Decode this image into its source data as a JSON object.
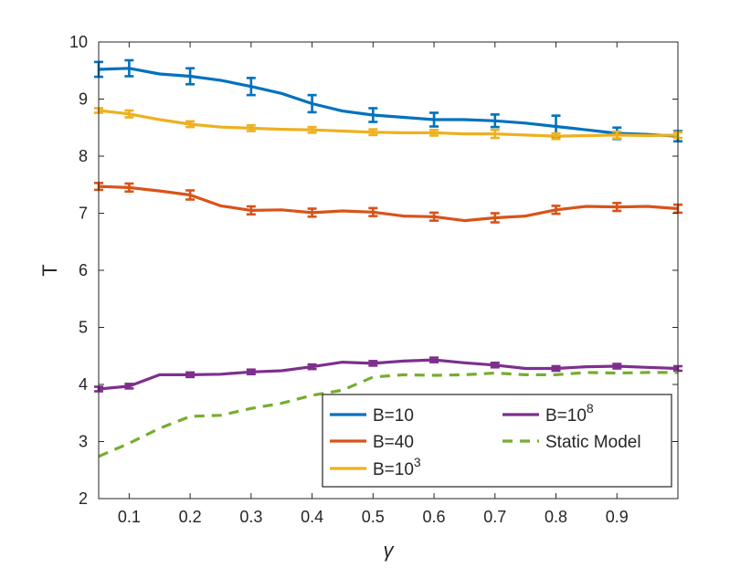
{
  "chart_data": {
    "type": "line",
    "title": "",
    "xlabel": "γ",
    "ylabel": "T",
    "xlim": [
      0.05,
      1.0
    ],
    "ylim": [
      2,
      10
    ],
    "xticks": [
      0.1,
      0.2,
      0.3,
      0.4,
      0.5,
      0.6,
      0.7,
      0.8,
      0.9
    ],
    "xtick_labels": [
      "0.1",
      "0.2",
      "0.3",
      "0.4",
      "0.5",
      "0.6",
      "0.7",
      "0.8",
      "0.9"
    ],
    "yticks": [
      2,
      3,
      4,
      5,
      6,
      7,
      8,
      9,
      10
    ],
    "ytick_labels": [
      "2",
      "3",
      "4",
      "5",
      "6",
      "7",
      "8",
      "9",
      "10"
    ],
    "grid": false,
    "legend_placement": "bottom-right",
    "series": [
      {
        "legend_base": "B=10",
        "legend_sup": "",
        "color": "#0072BD",
        "style": "solid",
        "x": [
          0.05,
          0.1,
          0.15,
          0.2,
          0.25,
          0.3,
          0.35,
          0.4,
          0.45,
          0.5,
          0.55,
          0.6,
          0.65,
          0.7,
          0.75,
          0.8,
          0.85,
          0.9,
          0.95,
          1.0
        ],
        "y": [
          9.52,
          9.54,
          9.44,
          9.4,
          9.33,
          9.22,
          9.1,
          8.92,
          8.79,
          8.72,
          8.68,
          8.64,
          8.64,
          8.62,
          8.58,
          8.52,
          8.46,
          8.4,
          8.38,
          8.35
        ],
        "error_x": [
          0.05,
          0.1,
          0.2,
          0.3,
          0.4,
          0.5,
          0.6,
          0.7,
          0.8,
          0.9,
          1.0
        ],
        "error_y": [
          9.52,
          9.54,
          9.4,
          9.22,
          8.92,
          8.72,
          8.64,
          8.62,
          8.52,
          8.4,
          8.35
        ],
        "error_half": [
          0.13,
          0.14,
          0.14,
          0.15,
          0.15,
          0.12,
          0.12,
          0.11,
          0.19,
          0.1,
          0.09
        ]
      },
      {
        "legend_base": "B=40",
        "legend_sup": "",
        "color": "#D95319",
        "style": "solid",
        "x": [
          0.05,
          0.1,
          0.15,
          0.2,
          0.25,
          0.3,
          0.35,
          0.4,
          0.45,
          0.5,
          0.55,
          0.6,
          0.65,
          0.7,
          0.75,
          0.8,
          0.85,
          0.9,
          0.95,
          1.0
        ],
        "y": [
          7.47,
          7.45,
          7.39,
          7.32,
          7.13,
          7.05,
          7.06,
          7.01,
          7.04,
          7.02,
          6.95,
          6.94,
          6.87,
          6.92,
          6.95,
          7.06,
          7.12,
          7.11,
          7.12,
          7.08
        ],
        "error_x": [
          0.05,
          0.1,
          0.2,
          0.3,
          0.4,
          0.5,
          0.6,
          0.7,
          0.8,
          0.9,
          1.0
        ],
        "error_y": [
          7.47,
          7.45,
          7.32,
          7.05,
          7.01,
          7.02,
          6.94,
          6.92,
          7.06,
          7.11,
          7.08
        ],
        "error_half": [
          0.06,
          0.07,
          0.08,
          0.07,
          0.07,
          0.07,
          0.07,
          0.08,
          0.07,
          0.07,
          0.07
        ]
      },
      {
        "legend_base": "B=10",
        "legend_sup": "3",
        "color": "#EDB120",
        "style": "solid",
        "x": [
          0.05,
          0.1,
          0.15,
          0.2,
          0.25,
          0.3,
          0.35,
          0.4,
          0.45,
          0.5,
          0.55,
          0.6,
          0.65,
          0.7,
          0.75,
          0.8,
          0.85,
          0.9,
          0.95,
          1.0
        ],
        "y": [
          8.8,
          8.74,
          8.64,
          8.56,
          8.51,
          8.49,
          8.47,
          8.46,
          8.44,
          8.42,
          8.41,
          8.41,
          8.39,
          8.39,
          8.37,
          8.35,
          8.36,
          8.37,
          8.36,
          8.37
        ],
        "error_x": [
          0.05,
          0.1,
          0.2,
          0.3,
          0.4,
          0.5,
          0.6,
          0.7,
          0.8,
          0.9,
          1.0
        ],
        "error_y": [
          8.8,
          8.74,
          8.56,
          8.49,
          8.46,
          8.42,
          8.41,
          8.39,
          8.35,
          8.37,
          8.37
        ],
        "error_half": [
          0.04,
          0.06,
          0.05,
          0.05,
          0.05,
          0.05,
          0.05,
          0.07,
          0.05,
          0.06,
          0.05
        ]
      },
      {
        "legend_base": "B=10",
        "legend_sup": "8",
        "color": "#7E2F8E",
        "style": "solid",
        "x": [
          0.05,
          0.1,
          0.15,
          0.2,
          0.25,
          0.3,
          0.35,
          0.4,
          0.45,
          0.5,
          0.55,
          0.6,
          0.65,
          0.7,
          0.75,
          0.8,
          0.85,
          0.9,
          0.95,
          1.0
        ],
        "y": [
          3.92,
          3.97,
          4.17,
          4.17,
          4.18,
          4.22,
          4.24,
          4.31,
          4.39,
          4.37,
          4.41,
          4.43,
          4.38,
          4.34,
          4.28,
          4.28,
          4.31,
          4.32,
          4.3,
          4.28
        ],
        "error_x": [
          0.05,
          0.1,
          0.2,
          0.3,
          0.4,
          0.5,
          0.6,
          0.7,
          0.8,
          0.9,
          1.0
        ],
        "error_y": [
          3.92,
          3.97,
          4.17,
          4.22,
          4.31,
          4.37,
          4.43,
          4.34,
          4.28,
          4.32,
          4.28
        ],
        "error_half": [
          0.04,
          0.04,
          0.04,
          0.04,
          0.04,
          0.04,
          0.04,
          0.04,
          0.04,
          0.04,
          0.04
        ]
      },
      {
        "legend_base": "Static Model",
        "legend_sup": "",
        "color": "#77AC30",
        "style": "dashed",
        "x": [
          0.05,
          0.1,
          0.15,
          0.2,
          0.25,
          0.3,
          0.35,
          0.4,
          0.45,
          0.5,
          0.55,
          0.6,
          0.65,
          0.7,
          0.75,
          0.8,
          0.85,
          0.9,
          0.95,
          1.0
        ],
        "y": [
          2.74,
          2.97,
          3.23,
          3.44,
          3.46,
          3.58,
          3.67,
          3.81,
          3.9,
          4.13,
          4.17,
          4.16,
          4.17,
          4.2,
          4.17,
          4.17,
          4.21,
          4.2,
          4.21,
          4.21
        ]
      }
    ]
  }
}
